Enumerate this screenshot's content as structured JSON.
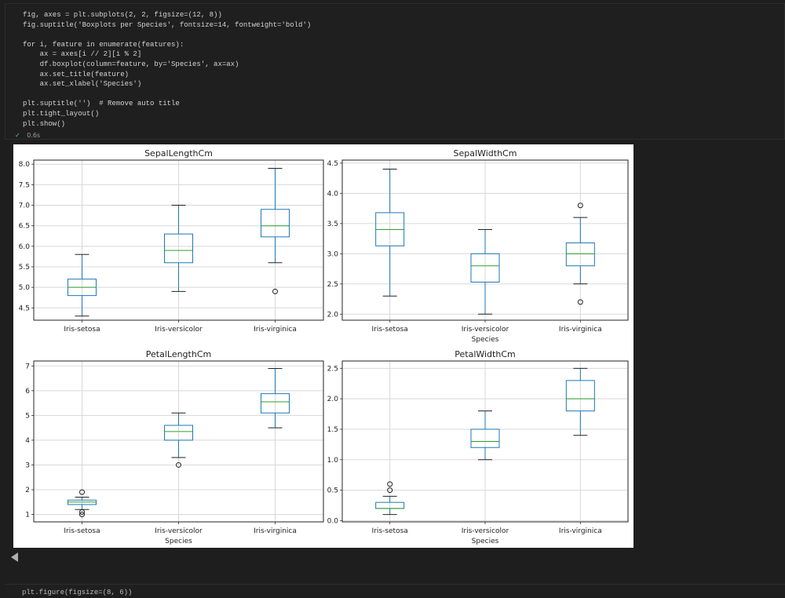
{
  "code_cell": {
    "lines": [
      "fig, axes = plt.subplots(2, 2, figsize=(12, 8))",
      "fig.suptitle('Boxplots per Species', fontsize=14, fontweight='bold')",
      "",
      "for i, feature in enumerate(features):",
      "    ax = axes[i // 2][i % 2]",
      "    df.boxplot(column=feature, by='Species', ax=ax)",
      "    ax.set_title(feature)",
      "    ax.set_xlabel('Species')",
      "",
      "plt.suptitle('')  # Remove auto title",
      "plt.tight_layout()",
      "plt.show()"
    ],
    "run_time": "0.6s"
  },
  "next_cell": {
    "line": "plt.figure(figsize=(8, 6))"
  },
  "colors": {
    "box": "#1f77b4",
    "median": "#2ca02c",
    "background": "#1e1e1e"
  },
  "chart_data": [
    {
      "type": "boxplot",
      "title": "SepalLengthCm",
      "xlabel": "",
      "categories": [
        "Iris-setosa",
        "Iris-versicolor",
        "Iris-virginica"
      ],
      "yticks": [
        "4.5",
        "5.0",
        "5.5",
        "6.0",
        "6.5",
        "7.0",
        "7.5",
        "8.0"
      ],
      "ylim": [
        4.2,
        8.1
      ],
      "boxes": [
        {
          "whislo": 4.3,
          "q1": 4.8,
          "med": 5.0,
          "q3": 5.2,
          "whishi": 5.8,
          "fliers": []
        },
        {
          "whislo": 4.9,
          "q1": 5.6,
          "med": 5.9,
          "q3": 6.3,
          "whishi": 7.0,
          "fliers": []
        },
        {
          "whislo": 5.6,
          "q1": 6.23,
          "med": 6.5,
          "q3": 6.9,
          "whishi": 7.9,
          "fliers": [
            4.9
          ]
        }
      ]
    },
    {
      "type": "boxplot",
      "title": "SepalWidthCm",
      "xlabel": "Species",
      "categories": [
        "Iris-setosa",
        "Iris-versicolor",
        "Iris-virginica"
      ],
      "yticks": [
        "2.0",
        "2.5",
        "3.0",
        "3.5",
        "4.0",
        "4.5"
      ],
      "ylim": [
        1.9,
        4.55
      ],
      "boxes": [
        {
          "whislo": 2.3,
          "q1": 3.13,
          "med": 3.4,
          "q3": 3.68,
          "whishi": 4.4,
          "fliers": []
        },
        {
          "whislo": 2.0,
          "q1": 2.53,
          "med": 2.8,
          "q3": 3.0,
          "whishi": 3.4,
          "fliers": []
        },
        {
          "whislo": 2.5,
          "q1": 2.8,
          "med": 3.0,
          "q3": 3.18,
          "whishi": 3.6,
          "fliers": [
            3.8,
            2.2
          ]
        }
      ]
    },
    {
      "type": "boxplot",
      "title": "PetalLengthCm",
      "xlabel": "Species",
      "categories": [
        "Iris-setosa",
        "Iris-versicolor",
        "Iris-virginica"
      ],
      "yticks": [
        "1",
        "2",
        "3",
        "4",
        "5",
        "6",
        "7"
      ],
      "ylim": [
        0.7,
        7.2
      ],
      "boxes": [
        {
          "whislo": 1.2,
          "q1": 1.4,
          "med": 1.5,
          "q3": 1.58,
          "whishi": 1.7,
          "fliers": [
            1.9,
            1.1,
            1.0
          ]
        },
        {
          "whislo": 3.3,
          "q1": 4.0,
          "med": 4.35,
          "q3": 4.6,
          "whishi": 5.1,
          "fliers": [
            3.0
          ]
        },
        {
          "whislo": 4.5,
          "q1": 5.1,
          "med": 5.55,
          "q3": 5.88,
          "whishi": 6.9,
          "fliers": []
        }
      ]
    },
    {
      "type": "boxplot",
      "title": "PetalWidthCm",
      "xlabel": "Species",
      "categories": [
        "Iris-setosa",
        "Iris-versicolor",
        "Iris-virginica"
      ],
      "yticks": [
        "0.0",
        "0.5",
        "1.0",
        "1.5",
        "2.0",
        "2.5"
      ],
      "ylim": [
        -0.02,
        2.62
      ],
      "boxes": [
        {
          "whislo": 0.1,
          "q1": 0.2,
          "med": 0.2,
          "q3": 0.3,
          "whishi": 0.4,
          "fliers": [
            0.6,
            0.5
          ]
        },
        {
          "whislo": 1.0,
          "q1": 1.2,
          "med": 1.3,
          "q3": 1.5,
          "whishi": 1.8,
          "fliers": []
        },
        {
          "whislo": 1.4,
          "q1": 1.8,
          "med": 2.0,
          "q3": 2.3,
          "whishi": 2.5,
          "fliers": []
        }
      ]
    }
  ]
}
